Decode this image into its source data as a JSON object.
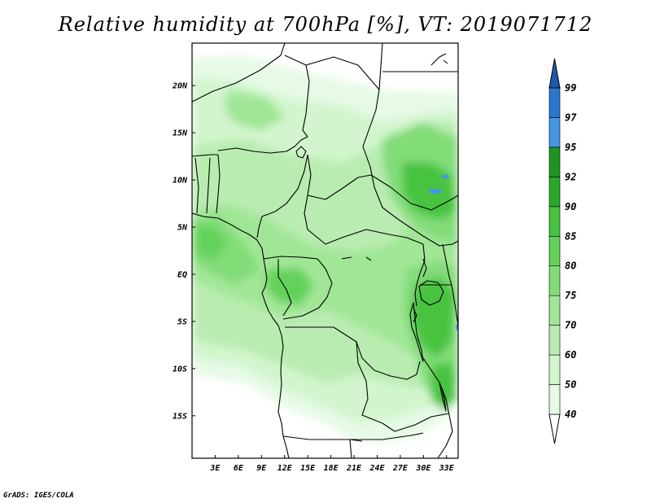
{
  "title": "Relative humidity at 700hPa [%], VT: 2019071712",
  "credit": "GrADS: IGES/COLA",
  "map": {
    "lon_range": [
      0,
      34.5
    ],
    "lat_range": [
      -19.5,
      24.5
    ],
    "lat_ticks": [
      {
        "value": 20,
        "label": "20N"
      },
      {
        "value": 15,
        "label": "15N"
      },
      {
        "value": 10,
        "label": "10N"
      },
      {
        "value": 5,
        "label": "5N"
      },
      {
        "value": 0,
        "label": "EQ"
      },
      {
        "value": -5,
        "label": "5S"
      },
      {
        "value": -10,
        "label": "10S"
      },
      {
        "value": -15,
        "label": "15S"
      }
    ],
    "lon_ticks": [
      {
        "value": 3,
        "label": "3E"
      },
      {
        "value": 6,
        "label": "6E"
      },
      {
        "value": 9,
        "label": "9E"
      },
      {
        "value": 12,
        "label": "12E"
      },
      {
        "value": 15,
        "label": "15E"
      },
      {
        "value": 18,
        "label": "18E"
      },
      {
        "value": 21,
        "label": "21E"
      },
      {
        "value": 24,
        "label": "24E"
      },
      {
        "value": 27,
        "label": "27E"
      },
      {
        "value": 30,
        "label": "30E"
      },
      {
        "value": 33,
        "label": "33E"
      }
    ]
  },
  "colorbar": {
    "levels": [
      {
        "label": "40",
        "color": "#e6fae6"
      },
      {
        "label": "50",
        "color": "#d2f5cd"
      },
      {
        "label": "60",
        "color": "#b9ecb1"
      },
      {
        "label": "70",
        "color": "#a0e696"
      },
      {
        "label": "75",
        "color": "#82dc78"
      },
      {
        "label": "80",
        "color": "#64d25a"
      },
      {
        "label": "85",
        "color": "#46c341"
      },
      {
        "label": "90",
        "color": "#28aa28"
      },
      {
        "label": "92",
        "color": "#1e961e"
      },
      {
        "label": "95",
        "color": "#4696e6"
      },
      {
        "label": "97",
        "color": "#2878d2"
      },
      {
        "label": "99",
        "color": "#1e64be"
      }
    ],
    "below_color": "#ffffff",
    "above_color": "#1e5aaa"
  }
}
